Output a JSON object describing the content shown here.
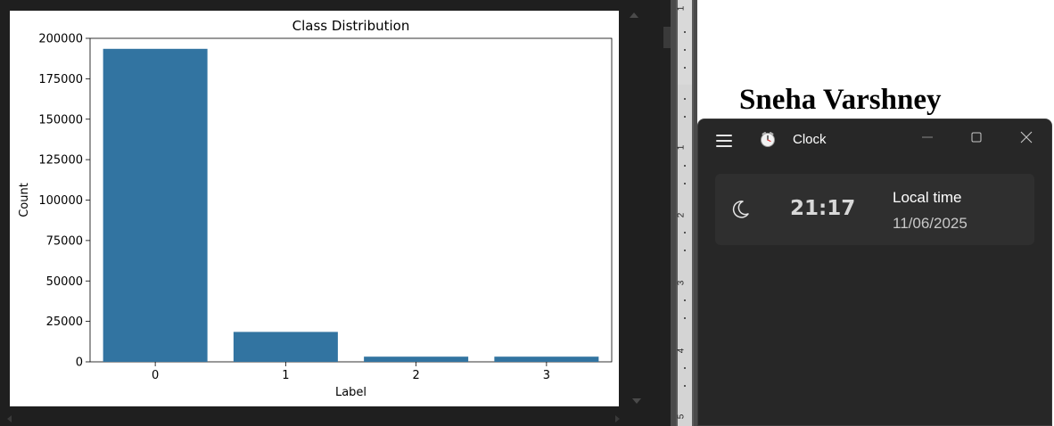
{
  "chart_data": {
    "type": "bar",
    "title": "Class Distribution",
    "xlabel": "Label",
    "ylabel": "Count",
    "categories": [
      "0",
      "1",
      "2",
      "3"
    ],
    "values": [
      193500,
      18500,
      3200,
      3200
    ],
    "ylim": [
      0,
      200000
    ],
    "yticks": [
      "0",
      "25000",
      "50000",
      "75000",
      "100000",
      "125000",
      "150000",
      "175000",
      "200000"
    ],
    "bar_color": "#3274a1",
    "grid": false
  },
  "document": {
    "author": "Sneha Varshney"
  },
  "ruler": {
    "numbers": [
      "1",
      "1",
      "2",
      "3",
      "4",
      "5"
    ]
  },
  "clock_app": {
    "title": "Clock",
    "card": {
      "time": "21:17",
      "label": "Local time",
      "date": "11/06/2025"
    }
  },
  "colors": {
    "editor_bg": "#1f1f1f",
    "clock_bg": "#272727",
    "card_bg": "#2f2f2f"
  }
}
